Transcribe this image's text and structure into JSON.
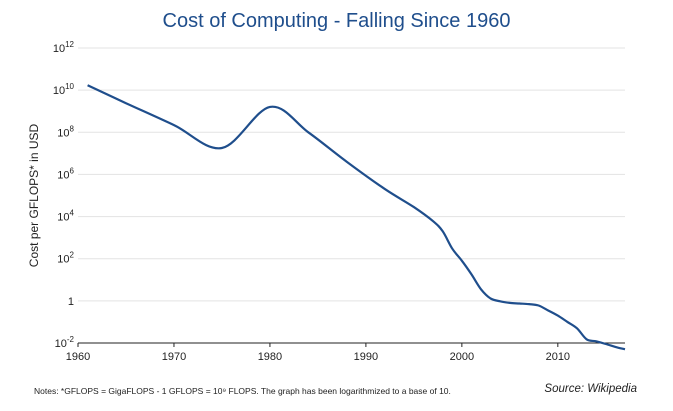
{
  "chart_data": {
    "type": "line",
    "title": "Cost of Computing - Falling Since 1960",
    "xlabel": "",
    "ylabel": "Cost per GFLOPS* in USD",
    "y_scale": "log10",
    "ylim": [
      0.01,
      1000000000000
    ],
    "xlim": [
      1960,
      2017
    ],
    "x_ticks": [
      1960,
      1970,
      1980,
      1990,
      2000,
      2010
    ],
    "x_tick_labels": [
      "1960",
      "1970",
      "1980",
      "1990",
      "2000",
      "2010"
    ],
    "y_ticks": [
      {
        "base": "10",
        "exp": "-2"
      },
      {
        "base": "1",
        "exp": ""
      },
      {
        "base": "10",
        "exp": "2"
      },
      {
        "base": "10",
        "exp": "4"
      },
      {
        "base": "10",
        "exp": "6"
      },
      {
        "base": "10",
        "exp": "8"
      },
      {
        "base": "10",
        "exp": "10"
      },
      {
        "base": "10",
        "exp": "12"
      }
    ],
    "grid": "horizontal",
    "line_color": "#1f4e8c",
    "series": [
      {
        "x": [
          1961,
          1965,
          1970,
          1975,
          1980,
          1984,
          1988,
          1992,
          1995,
          1997,
          1998,
          1999,
          2000,
          2001,
          2002,
          2003,
          2004,
          2005,
          2006,
          2007,
          2008,
          2009,
          2010,
          2011,
          2012,
          2013,
          2014,
          2015,
          2016,
          2017
        ],
        "y": [
          17000000000,
          2400000000,
          220000000,
          18000000,
          1600000000,
          100000000,
          4000000,
          200000,
          28000,
          6000,
          2000,
          300,
          80,
          18,
          3.5,
          1.3,
          0.95,
          0.8,
          0.75,
          0.7,
          0.6,
          0.35,
          0.2,
          0.1,
          0.05,
          0.015,
          0.012,
          0.009,
          0.0065,
          0.005
        ]
      }
    ],
    "notes": "Notes: *GFLOPS = GigaFLOPS - 1 GFLOPS = 10⁹ FLOPS. The graph has been logarithmized to a base of 10.",
    "source": "Source: Wikipedia"
  }
}
